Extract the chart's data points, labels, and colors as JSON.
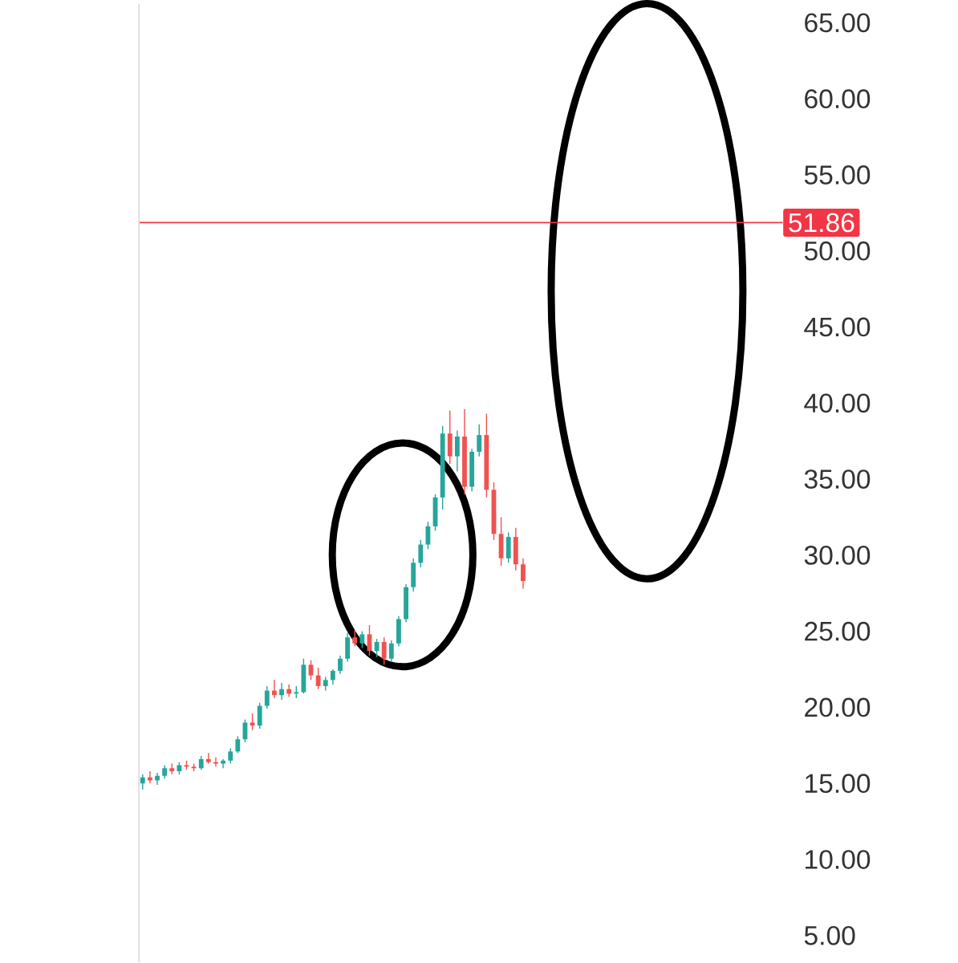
{
  "chart_data": {
    "type": "candlestick",
    "categories": [
      null,
      null,
      null,
      null,
      null,
      null,
      null,
      null,
      null,
      null,
      null,
      null,
      null,
      null,
      null,
      null,
      null,
      null,
      null,
      null,
      null,
      null,
      null,
      null,
      null,
      null,
      null,
      null,
      null,
      null,
      null,
      null,
      null,
      null,
      null,
      null,
      null,
      null,
      null,
      null,
      null,
      null,
      null,
      null,
      null,
      null,
      null,
      null,
      null,
      null,
      null,
      null,
      null,
      null,
      null,
      null,
      null,
      null,
      null,
      null,
      null,
      null,
      null,
      null,
      null,
      null,
      null,
      null,
      null,
      null,
      null,
      null,
      null,
      null,
      null,
      null,
      null,
      null,
      null,
      null,
      null,
      null,
      null,
      null,
      null,
      null,
      null,
      null
    ],
    "ohlc": [
      [
        15.0,
        15.6,
        14.6,
        15.4
      ],
      [
        15.4,
        15.8,
        15.0,
        15.2
      ],
      [
        15.2,
        15.7,
        14.9,
        15.5
      ],
      [
        15.5,
        16.2,
        15.3,
        16.0
      ],
      [
        16.0,
        16.3,
        15.6,
        15.8
      ],
      [
        15.8,
        16.4,
        15.6,
        16.2
      ],
      [
        16.2,
        16.5,
        15.9,
        16.1
      ],
      [
        16.1,
        16.3,
        15.8,
        16.0
      ],
      [
        16.0,
        16.8,
        15.9,
        16.6
      ],
      [
        16.6,
        17.0,
        16.3,
        16.4
      ],
      [
        16.4,
        16.7,
        16.1,
        16.3
      ],
      [
        16.3,
        16.6,
        16.0,
        16.5
      ],
      [
        16.5,
        17.3,
        16.3,
        17.1
      ],
      [
        17.1,
        18.1,
        17.0,
        17.9
      ],
      [
        17.9,
        19.2,
        17.7,
        19.0
      ],
      [
        19.0,
        19.6,
        18.5,
        18.8
      ],
      [
        18.8,
        20.3,
        18.6,
        20.1
      ],
      [
        20.1,
        21.4,
        19.9,
        21.1
      ],
      [
        21.1,
        21.8,
        20.6,
        20.8
      ],
      [
        20.8,
        21.6,
        20.5,
        21.2
      ],
      [
        21.2,
        21.5,
        20.7,
        20.9
      ],
      [
        20.9,
        21.4,
        20.6,
        21.0
      ],
      [
        21.0,
        23.2,
        20.9,
        22.8
      ],
      [
        22.8,
        23.1,
        21.8,
        22.1
      ],
      [
        22.1,
        22.6,
        21.2,
        21.4
      ],
      [
        21.4,
        22.0,
        21.1,
        21.8
      ],
      [
        21.8,
        22.5,
        21.5,
        22.4
      ],
      [
        22.4,
        23.4,
        22.2,
        23.2
      ],
      [
        23.2,
        24.9,
        23.0,
        24.6
      ],
      [
        24.6,
        25.1,
        24.0,
        24.2
      ],
      [
        24.2,
        25.0,
        23.9,
        24.8
      ],
      [
        24.8,
        25.4,
        23.4,
        23.7
      ],
      [
        23.7,
        24.5,
        23.3,
        24.3
      ],
      [
        24.3,
        24.6,
        22.8,
        23.2
      ],
      [
        23.2,
        24.4,
        23.0,
        24.2
      ],
      [
        24.2,
        26.0,
        24.0,
        25.8
      ],
      [
        25.8,
        28.1,
        25.6,
        27.9
      ],
      [
        27.9,
        29.8,
        27.6,
        29.5
      ],
      [
        29.5,
        31.0,
        29.2,
        30.7
      ],
      [
        30.7,
        32.2,
        30.4,
        31.9
      ],
      [
        31.9,
        34.0,
        31.6,
        33.8
      ],
      [
        33.8,
        38.5,
        33.0,
        38.0
      ],
      [
        38.0,
        39.5,
        36.0,
        36.5
      ],
      [
        36.5,
        38.2,
        35.5,
        37.8
      ],
      [
        37.8,
        39.6,
        34.0,
        34.5
      ],
      [
        34.5,
        37.0,
        34.2,
        36.8
      ],
      [
        36.8,
        38.6,
        36.5,
        37.9
      ],
      [
        37.9,
        39.3,
        33.8,
        34.3
      ],
      [
        34.3,
        34.8,
        31.0,
        31.4
      ],
      [
        31.4,
        32.5,
        29.3,
        29.8
      ],
      [
        29.8,
        31.5,
        29.5,
        31.2
      ],
      [
        31.2,
        31.8,
        29.0,
        29.4
      ],
      [
        29.4,
        29.8,
        27.8,
        28.3
      ],
      null,
      null,
      null,
      null,
      null,
      null,
      null,
      null,
      null,
      null,
      null,
      null,
      null,
      null,
      null,
      null,
      null,
      null,
      null,
      null,
      null,
      null,
      null,
      null,
      null,
      null,
      null,
      null,
      null,
      null,
      null,
      null,
      null,
      null,
      null
    ],
    "colors": [
      "#26a69a",
      "#ef5350",
      "#26a69a",
      "#26a69a",
      "#ef5350",
      "#26a69a",
      "#ef5350",
      "#ef5350",
      "#26a69a",
      "#ef5350",
      "#ef5350",
      "#26a69a",
      "#26a69a",
      "#26a69a",
      "#26a69a",
      "#ef5350",
      "#26a69a",
      "#26a69a",
      "#ef5350",
      "#26a69a",
      "#ef5350",
      "#26a69a",
      "#26a69a",
      "#ef5350",
      "#ef5350",
      "#26a69a",
      "#26a69a",
      "#26a69a",
      "#26a69a",
      "#ef5350",
      "#26a69a",
      "#ef5350",
      "#26a69a",
      "#ef5350",
      "#26a69a",
      "#26a69a",
      "#26a69a",
      "#26a69a",
      "#26a69a",
      "#26a69a",
      "#26a69a",
      "#26a69a",
      "#ef5350",
      "#26a69a",
      "#ef5350",
      "#26a69a",
      "#26a69a",
      "#ef5350",
      "#ef5350",
      "#ef5350",
      "#26a69a",
      "#ef5350",
      "#ef5350",
      null,
      null,
      null,
      null,
      null,
      null,
      null,
      null,
      null,
      null,
      null,
      null,
      null,
      null,
      null,
      null,
      null,
      null,
      null,
      null,
      null,
      null,
      null,
      null,
      null,
      null,
      null,
      null,
      null,
      null,
      null,
      null,
      null,
      null,
      null
    ],
    "ylim": [
      3.24,
      66.26
    ],
    "yticks": [
      {
        "value": 5,
        "label": "5.00"
      },
      {
        "value": 10,
        "label": "10.00"
      },
      {
        "value": 15,
        "label": "15.00"
      },
      {
        "value": 20,
        "label": "20.00"
      },
      {
        "value": 25,
        "label": "25.00"
      },
      {
        "value": 30,
        "label": "30.00"
      },
      {
        "value": 35,
        "label": "35.00"
      },
      {
        "value": 40,
        "label": "40.00"
      },
      {
        "value": 45,
        "label": "45.00"
      },
      {
        "value": 50,
        "label": "50.00"
      },
      {
        "value": 55,
        "label": "55.00"
      },
      {
        "value": 60,
        "label": "60.00"
      },
      {
        "value": 65,
        "label": "65.00"
      }
    ],
    "tick_labels": "y",
    "ref_lines": [
      {
        "axis": "y",
        "value": 51.86,
        "label": "51.86",
        "color": "#f23645"
      }
    ]
  }
}
